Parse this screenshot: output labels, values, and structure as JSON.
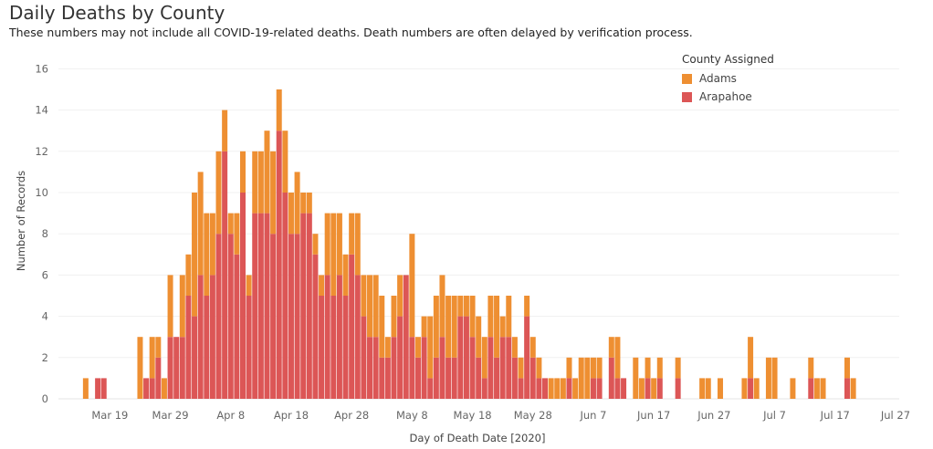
{
  "header": {
    "title": "Daily Deaths by County",
    "subtitle": "These numbers may not include all COVID-19-related deaths. Death numbers are often delayed by verification process."
  },
  "legend": {
    "title": "County Assigned",
    "items": [
      {
        "label": "Adams",
        "color": "#EE8F32"
      },
      {
        "label": "Arapahoe",
        "color": "#DC5656"
      }
    ]
  },
  "chart_data": {
    "type": "bar",
    "stacked": true,
    "title": "Daily Deaths by County",
    "xlabel": "Day of Death Date [2020]",
    "ylabel": "Number of Records",
    "ylim": [
      0,
      16.5
    ],
    "yticks": [
      0,
      2,
      4,
      6,
      8,
      10,
      12,
      14,
      16
    ],
    "x_range": [
      "2020-03-11",
      "2020-07-28"
    ],
    "x_tick_labels": [
      "Mar 19",
      "Mar 29",
      "Apr 8",
      "Apr 18",
      "Apr 28",
      "May 8",
      "May 18",
      "May 28",
      "Jun 7",
      "Jun 17",
      "Jun 27",
      "Jul 7",
      "Jul 17",
      "Jul 27"
    ],
    "grid": "horizontal",
    "legend_position": "top-right",
    "categories": [
      "2020-03-15",
      "2020-03-17",
      "2020-03-18",
      "2020-03-24",
      "2020-03-25",
      "2020-03-26",
      "2020-03-27",
      "2020-03-28",
      "2020-03-29",
      "2020-03-30",
      "2020-03-31",
      "2020-04-01",
      "2020-04-02",
      "2020-04-03",
      "2020-04-04",
      "2020-04-05",
      "2020-04-06",
      "2020-04-07",
      "2020-04-08",
      "2020-04-09",
      "2020-04-10",
      "2020-04-11",
      "2020-04-12",
      "2020-04-13",
      "2020-04-14",
      "2020-04-15",
      "2020-04-16",
      "2020-04-17",
      "2020-04-18",
      "2020-04-19",
      "2020-04-20",
      "2020-04-21",
      "2020-04-22",
      "2020-04-23",
      "2020-04-24",
      "2020-04-25",
      "2020-04-26",
      "2020-04-27",
      "2020-04-28",
      "2020-04-29",
      "2020-04-30",
      "2020-05-01",
      "2020-05-02",
      "2020-05-03",
      "2020-05-04",
      "2020-05-05",
      "2020-05-06",
      "2020-05-07",
      "2020-05-08",
      "2020-05-09",
      "2020-05-10",
      "2020-05-11",
      "2020-05-12",
      "2020-05-13",
      "2020-05-14",
      "2020-05-15",
      "2020-05-16",
      "2020-05-17",
      "2020-05-18",
      "2020-05-19",
      "2020-05-20",
      "2020-05-21",
      "2020-05-22",
      "2020-05-23",
      "2020-05-24",
      "2020-05-25",
      "2020-05-26",
      "2020-05-27",
      "2020-05-28",
      "2020-05-29",
      "2020-05-30",
      "2020-05-31",
      "2020-06-01",
      "2020-06-02",
      "2020-06-03",
      "2020-06-04",
      "2020-06-05",
      "2020-06-06",
      "2020-06-07",
      "2020-06-08",
      "2020-06-10",
      "2020-06-11",
      "2020-06-12",
      "2020-06-14",
      "2020-06-15",
      "2020-06-16",
      "2020-06-17",
      "2020-06-18",
      "2020-06-21",
      "2020-06-25",
      "2020-06-26",
      "2020-06-28",
      "2020-07-02",
      "2020-07-03",
      "2020-07-04",
      "2020-07-06",
      "2020-07-07",
      "2020-07-10",
      "2020-07-13",
      "2020-07-14",
      "2020-07-15",
      "2020-07-19",
      "2020-07-20"
    ],
    "series": [
      {
        "name": "Arapahoe",
        "values": [
          0,
          1,
          1,
          0,
          1,
          1,
          2,
          0,
          3,
          3,
          3,
          5,
          4,
          6,
          5,
          6,
          8,
          12,
          8,
          7,
          10,
          5,
          9,
          9,
          9,
          8,
          13,
          10,
          8,
          8,
          9,
          9,
          7,
          5,
          6,
          5,
          6,
          5,
          7,
          6,
          4,
          3,
          3,
          2,
          2,
          3,
          4,
          6,
          3,
          2,
          3,
          1,
          2,
          3,
          2,
          2,
          4,
          4,
          3,
          2,
          1,
          3,
          2,
          3,
          3,
          2,
          1,
          4,
          2,
          1,
          1,
          0,
          0,
          0,
          1,
          0,
          0,
          0,
          1,
          1,
          2,
          1,
          1,
          0,
          0,
          1,
          0,
          1,
          1,
          0,
          0,
          0,
          0,
          1,
          0,
          0,
          0,
          0,
          1,
          0,
          0,
          1,
          0
        ]
      },
      {
        "name": "Adams",
        "values": [
          1,
          0,
          0,
          3,
          0,
          2,
          1,
          1,
          3,
          0,
          3,
          2,
          6,
          5,
          4,
          3,
          4,
          2,
          1,
          2,
          2,
          1,
          3,
          3,
          4,
          4,
          2,
          3,
          2,
          3,
          1,
          1,
          1,
          1,
          3,
          4,
          3,
          2,
          2,
          3,
          2,
          3,
          3,
          3,
          1,
          2,
          2,
          0,
          5,
          1,
          1,
          3,
          3,
          3,
          3,
          3,
          1,
          1,
          2,
          2,
          2,
          2,
          3,
          1,
          2,
          1,
          1,
          1,
          1,
          1,
          0,
          1,
          1,
          1,
          1,
          1,
          2,
          2,
          1,
          1,
          1,
          2,
          0,
          2,
          1,
          1,
          1,
          1,
          1,
          1,
          1,
          1,
          1,
          2,
          1,
          2,
          2,
          1,
          1,
          1,
          1,
          1,
          1
        ]
      }
    ]
  }
}
